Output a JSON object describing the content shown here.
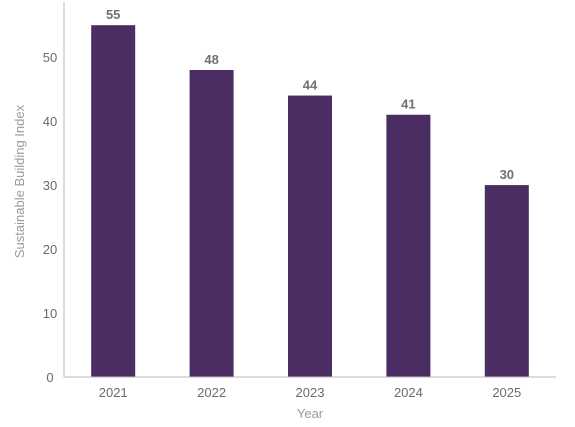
{
  "chart_data": {
    "type": "bar",
    "categories": [
      "2021",
      "2022",
      "2023",
      "2024",
      "2025"
    ],
    "values": [
      55,
      48,
      44,
      41,
      30
    ],
    "title": "",
    "xlabel": "Year",
    "ylabel": "Sustainable Building Index",
    "ylim": [
      0,
      58
    ],
    "yticks": [
      0,
      10,
      20,
      30,
      40,
      50
    ],
    "grid": false,
    "bar_color": "#4a2d63",
    "data_labels": true
  }
}
